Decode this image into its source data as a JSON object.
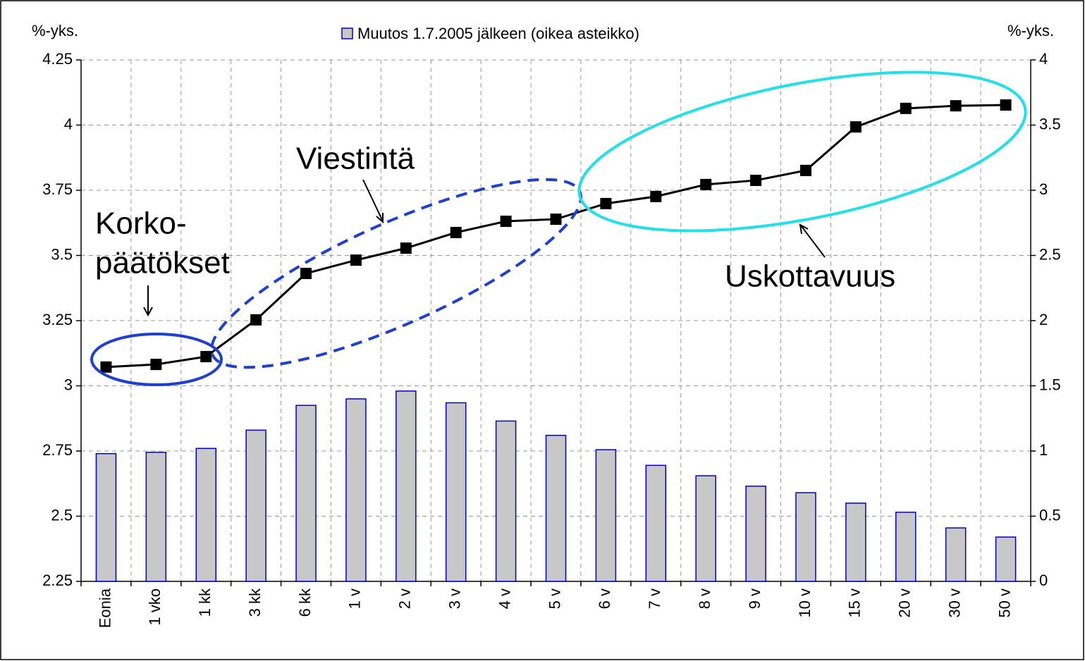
{
  "chart_data": {
    "type": "bar+line",
    "y_label": "%-yks.",
    "y2_label": "%-yks.",
    "categories": [
      "Eonia",
      "1 vko",
      "1 kk",
      "3 kk",
      "6 kk",
      "1 v",
      "2 v",
      "3 v",
      "4 v",
      "5 v",
      "6 v",
      "7 v",
      "8 v",
      "9 v",
      "10 v",
      "15 v",
      "20 v",
      "30 v",
      "50 v"
    ],
    "series": [
      {
        "name": "Muutos 1.7.2005 jälkeen (oikea asteikko)",
        "type": "bar",
        "axis": "y2",
        "color": "#c8c8c8",
        "edge_color": "#0000cc",
        "values": [
          0.98,
          0.99,
          1.02,
          1.16,
          1.35,
          1.4,
          1.46,
          1.37,
          1.23,
          1.12,
          1.01,
          0.89,
          0.81,
          0.73,
          0.68,
          0.6,
          0.53,
          0.41,
          0.34
        ]
      },
      {
        "type": "line",
        "axis": "y",
        "color": "#000000",
        "values": [
          3.072,
          3.082,
          3.112,
          3.253,
          3.431,
          3.482,
          3.528,
          3.588,
          3.631,
          3.639,
          3.699,
          3.726,
          3.772,
          3.788,
          3.826,
          3.993,
          4.064,
          4.074,
          4.077
        ]
      }
    ],
    "ylim": [
      2.25,
      4.25
    ],
    "yticks": [
      2.25,
      2.5,
      2.75,
      3,
      3.25,
      3.5,
      3.75,
      4,
      4.25
    ],
    "y2lim": [
      0,
      4
    ],
    "y2ticks": [
      0,
      0.5,
      1,
      1.5,
      2,
      2.5,
      3,
      3.5,
      4
    ],
    "grid": true,
    "legend": "top",
    "annotations": [
      "Korko-",
      "päätökset",
      "Viestintä",
      "Uskottavuus"
    ]
  }
}
